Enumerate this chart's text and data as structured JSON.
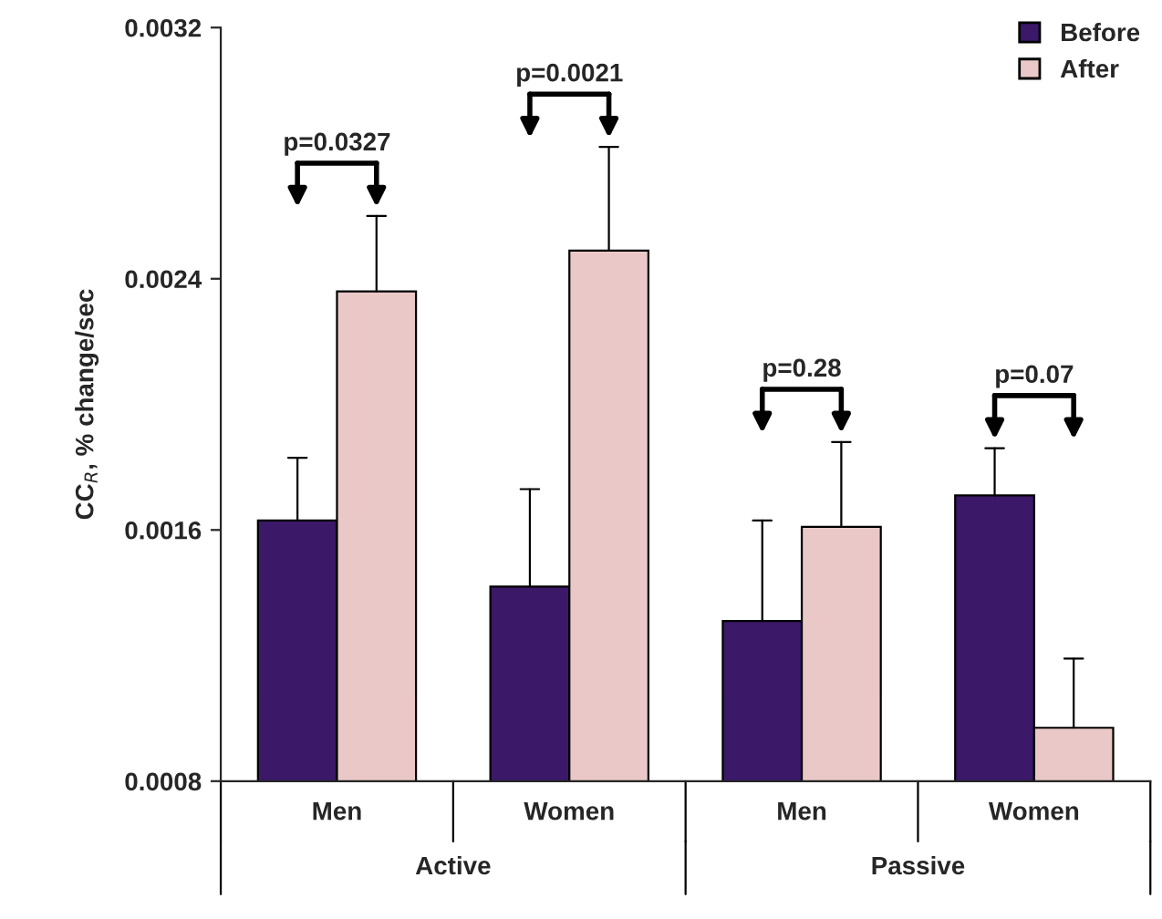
{
  "chart_data": {
    "type": "bar",
    "ylabel": "CC$_{R}$, % change/sec",
    "categories": [
      "Men",
      "Women",
      "Men",
      "Women"
    ],
    "series": [
      {
        "name": "Before",
        "color": "#3b1868",
        "values": [
          0.00163,
          0.00142,
          0.00131,
          0.00171
        ],
        "errors": [
          [
            0.00163,
            0.00183
          ],
          [
            0.00142,
            0.00173
          ],
          [
            0.00131,
            0.00163
          ],
          [
            0.00171,
            0.00186
          ]
        ]
      },
      {
        "name": "After",
        "color": "#ebc8c8",
        "values": [
          0.00236,
          0.00249,
          0.00161,
          0.00097
        ],
        "errors": [
          [
            0.00236,
            0.0026
          ],
          [
            0.00249,
            0.00282
          ],
          [
            0.00161,
            0.00188
          ],
          [
            0.00097,
            0.00119
          ]
        ]
      }
    ],
    "ylim": [
      0.0008,
      0.0032
    ],
    "yticks": [
      0.0008,
      0.0016,
      0.0024,
      0.0032
    ],
    "legend": "top right",
    "annotations": [
      "p=0.0327",
      "p=0.0021",
      "p=0.28",
      "p=0.07",
      "Active",
      "Passive"
    ]
  }
}
